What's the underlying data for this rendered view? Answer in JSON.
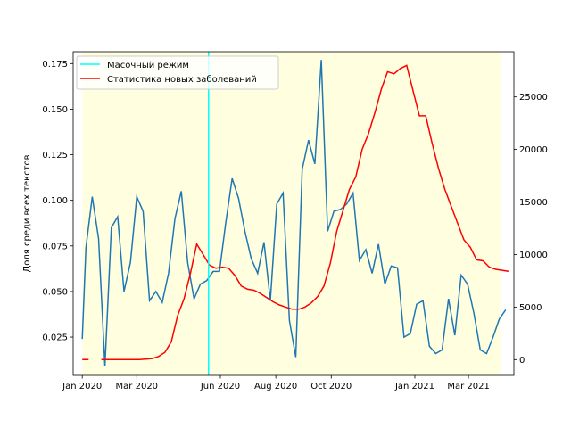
{
  "chart_data": {
    "type": "line",
    "title": "",
    "xlabel": "",
    "ylabel": "Доля среди всех текстов",
    "ylabel_right": "",
    "x_ticks": [
      "Jan 2020",
      "Mar 2020",
      "Jun 2020",
      "Aug 2020",
      "Oct 2020",
      "Jan 2021",
      "Mar 2021"
    ],
    "y_ticks_left": [
      "0.025",
      "0.050",
      "0.075",
      "0.100",
      "0.125",
      "0.150",
      "0.175"
    ],
    "y_ticks_right": [
      "0",
      "5000",
      "10000",
      "15000",
      "20000",
      "25000"
    ],
    "ylim_left": [
      0.004,
      0.1815
    ],
    "ylim_right": [
      -1500,
      29300
    ],
    "xlim": [
      "2019-12-22",
      "2021-04-20"
    ],
    "grid": false,
    "legend_position": "top-left",
    "highlight_span": {
      "from": "2020-01-01",
      "to": "2021-04-05",
      "color": "#ffffe0"
    },
    "mask_mode_line": {
      "name": "Масочный режим",
      "date": "2020-05-19",
      "color": "#00ffff"
    },
    "series": [
      {
        "name": "",
        "axis": "left",
        "color": "#1f77b4",
        "dates": [
          "2020-01-01",
          "2020-01-05",
          "2020-01-12",
          "2020-01-19",
          "2020-01-26",
          "2020-02-02",
          "2020-02-09",
          "2020-02-16",
          "2020-02-23",
          "2020-03-01",
          "2020-03-08",
          "2020-03-15",
          "2020-03-22",
          "2020-03-29",
          "2020-04-05",
          "2020-04-12",
          "2020-04-19",
          "2020-04-26",
          "2020-05-03",
          "2020-05-10",
          "2020-05-17",
          "2020-05-24",
          "2020-05-31",
          "2020-06-07",
          "2020-06-14",
          "2020-06-21",
          "2020-06-28",
          "2020-07-05",
          "2020-07-12",
          "2020-07-19",
          "2020-07-26",
          "2020-08-02",
          "2020-08-09",
          "2020-08-16",
          "2020-08-23",
          "2020-08-30",
          "2020-09-06",
          "2020-09-13",
          "2020-09-20",
          "2020-09-27",
          "2020-10-04",
          "2020-10-11",
          "2020-10-18",
          "2020-10-25",
          "2020-11-01",
          "2020-11-08",
          "2020-11-15",
          "2020-11-22",
          "2020-11-29",
          "2020-12-06",
          "2020-12-13",
          "2020-12-20",
          "2020-12-27",
          "2021-01-03",
          "2021-01-10",
          "2021-01-17",
          "2021-01-24",
          "2021-01-31",
          "2021-02-07",
          "2021-02-14",
          "2021-02-21",
          "2021-02-28",
          "2021-03-07",
          "2021-03-14",
          "2021-03-21",
          "2021-03-28",
          "2021-04-04",
          "2021-04-11"
        ],
        "values": [
          0.024,
          0.074,
          0.102,
          0.079,
          0.009,
          0.085,
          0.091,
          0.05,
          0.066,
          0.102,
          0.094,
          0.045,
          0.05,
          0.044,
          0.06,
          0.09,
          0.105,
          0.066,
          0.046,
          0.054,
          0.056,
          0.061,
          0.061,
          0.088,
          0.112,
          0.101,
          0.083,
          0.068,
          0.06,
          0.077,
          0.045,
          0.098,
          0.104,
          0.034,
          0.014,
          0.117,
          0.133,
          0.12,
          0.177,
          0.083,
          0.094,
          0.095,
          0.098,
          0.104,
          0.067,
          0.073,
          0.06,
          0.076,
          0.054,
          0.064,
          0.063,
          0.025,
          0.027,
          0.043,
          0.045,
          0.02,
          0.016,
          0.018,
          0.046,
          0.026,
          0.059,
          0.054,
          0.038,
          0.018,
          0.016,
          0.025,
          0.035,
          0.04
        ]
      },
      {
        "name": "Статистика новых заболеваний",
        "axis": "right",
        "color": "#ff0000",
        "dates": [
          "2020-01-01",
          "2020-01-08",
          "2020-01-15",
          "2020-01-22",
          "2020-01-29",
          "2020-02-05",
          "2020-02-12",
          "2020-02-19",
          "2020-02-26",
          "2020-03-04",
          "2020-03-11",
          "2020-03-18",
          "2020-03-25",
          "2020-04-01",
          "2020-04-08",
          "2020-04-15",
          "2020-04-22",
          "2020-04-29",
          "2020-05-06",
          "2020-05-13",
          "2020-05-20",
          "2020-05-27",
          "2020-06-03",
          "2020-06-10",
          "2020-06-17",
          "2020-06-24",
          "2020-07-01",
          "2020-07-08",
          "2020-07-15",
          "2020-07-22",
          "2020-07-29",
          "2020-08-05",
          "2020-08-12",
          "2020-08-19",
          "2020-08-26",
          "2020-09-02",
          "2020-09-09",
          "2020-09-16",
          "2020-09-23",
          "2020-09-30",
          "2020-10-07",
          "2020-10-14",
          "2020-10-21",
          "2020-10-28",
          "2020-11-04",
          "2020-11-11",
          "2020-11-18",
          "2020-11-25",
          "2020-12-02",
          "2020-12-09",
          "2020-12-16",
          "2020-12-23",
          "2020-12-30",
          "2021-01-06",
          "2021-01-13",
          "2021-01-20",
          "2021-01-27",
          "2021-02-03",
          "2021-02-10",
          "2021-02-17",
          "2021-02-24",
          "2021-03-03",
          "2021-03-10",
          "2021-03-17",
          "2021-03-24",
          "2021-03-31",
          "2021-04-07",
          "2021-04-14"
        ],
        "values": [
          0,
          0,
          null,
          0,
          0,
          0,
          0,
          0,
          0,
          0,
          50,
          100,
          300,
          700,
          1700,
          4200,
          5800,
          8200,
          11000,
          10000,
          9000,
          8700,
          8800,
          8700,
          8000,
          7000,
          6700,
          6600,
          6300,
          5900,
          5500,
          5200,
          5000,
          4800,
          4800,
          5000,
          5400,
          6000,
          7000,
          9200,
          12200,
          14200,
          16200,
          17400,
          20000,
          21500,
          23500,
          25700,
          27400,
          27200,
          27700,
          28000,
          25600,
          23200,
          23200,
          20600,
          18200,
          16200,
          14600,
          13000,
          11400,
          10700,
          9500,
          9400,
          8800,
          8600,
          8500,
          8400
        ]
      }
    ]
  }
}
